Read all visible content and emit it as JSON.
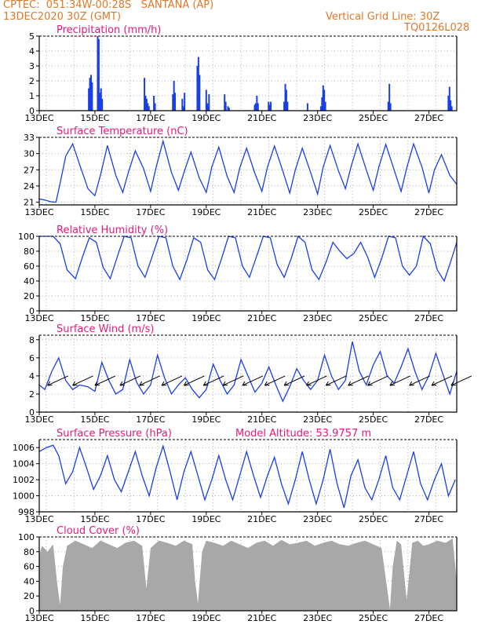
{
  "header": {
    "line1": "CPTEC:  051:34W-00:28S   SANTANA (AP)",
    "line2": "13DEC2020 30Z (GMT)",
    "right1": "Vertical Grid Line: 30Z",
    "right2": "TQ0126L028"
  },
  "colors": {
    "header": "#e07828",
    "title": "#e8197c",
    "line": "#1a3fe6",
    "cloud": "#a8a8a8"
  },
  "chart_data": [
    {
      "type": "bar",
      "title": "Precipitation (mm/h)",
      "ylim": [
        0,
        5
      ],
      "yticks": [
        "0",
        "1",
        "2",
        "3",
        "4",
        "5"
      ],
      "xticks": [
        "13DEC",
        "15DEC",
        "17DEC",
        "19DEC",
        "21DEC",
        "23DEC",
        "25DEC",
        "27DEC"
      ],
      "xlim": [
        0,
        15
      ],
      "x": [
        1.78,
        1.82,
        1.86,
        1.9,
        2.1,
        2.14,
        2.18,
        2.22,
        2.26,
        3.78,
        3.82,
        3.86,
        3.9,
        3.94,
        4.12,
        4.16,
        4.8,
        4.84,
        4.88,
        5.14,
        5.18,
        5.22,
        5.68,
        5.72,
        5.76,
        6.0,
        6.04,
        6.08,
        6.1,
        6.66,
        6.7,
        6.78,
        6.82,
        7.74,
        7.78,
        7.82,
        7.86,
        8.24,
        8.28,
        8.32,
        8.8,
        8.84,
        8.88,
        8.92,
        9.64,
        10.12,
        10.16,
        10.2,
        10.24,
        10.28,
        12.54,
        12.58,
        12.62,
        14.7,
        14.74,
        14.78,
        14.82
      ],
      "values": [
        1.5,
        2.2,
        2.4,
        1.9,
        5.0,
        4.8,
        1.2,
        1.5,
        0.8,
        2.2,
        1.0,
        0.8,
        0.5,
        0.3,
        1.0,
        0.5,
        1.1,
        2.0,
        1.2,
        0.8,
        0.3,
        1.2,
        3.0,
        3.6,
        2.4,
        1.4,
        0.5,
        0.3,
        1.1,
        1.1,
        0.6,
        0.3,
        0.2,
        0.4,
        0.5,
        1.0,
        0.5,
        0.6,
        0.4,
        0.6,
        0.6,
        1.8,
        1.4,
        0.6,
        0.5,
        0.3,
        0.9,
        1.7,
        1.4,
        0.6,
        0.6,
        1.8,
        0.5,
        1.0,
        1.6,
        0.7,
        0.3
      ]
    },
    {
      "type": "line",
      "title": "Surface Temperature (nC)",
      "ylim": [
        20.5,
        33
      ],
      "yticks": [
        "21",
        "24",
        "27",
        "30",
        "33"
      ],
      "xticks": [
        "13DEC",
        "15DEC",
        "17DEC",
        "19DEC",
        "21DEC",
        "23DEC",
        "25DEC",
        "27DEC"
      ],
      "xlim": [
        0,
        15
      ],
      "x": [
        0,
        0.2,
        0.4,
        0.6,
        0.75,
        0.95,
        1.2,
        1.45,
        1.75,
        2.0,
        2.2,
        2.45,
        2.75,
        3.0,
        3.2,
        3.45,
        3.75,
        4.0,
        4.2,
        4.45,
        4.75,
        5.0,
        5.2,
        5.45,
        5.75,
        6.0,
        6.2,
        6.45,
        6.75,
        7.0,
        7.2,
        7.45,
        7.75,
        8.0,
        8.2,
        8.45,
        8.75,
        9.0,
        9.2,
        9.45,
        9.75,
        10.0,
        10.2,
        10.45,
        10.75,
        11.0,
        11.2,
        11.45,
        11.75,
        12.0,
        12.2,
        12.45,
        12.75,
        13.0,
        13.2,
        13.45,
        13.75,
        14.0,
        14.2,
        14.45,
        14.75,
        15.0
      ],
      "values": [
        21.6,
        21.4,
        21.1,
        21.0,
        24.5,
        29.5,
        31.8,
        28.0,
        23.5,
        22.2,
        26.0,
        31.5,
        26.0,
        22.8,
        26.5,
        30.5,
        27.2,
        23.0,
        27.5,
        32.3,
        26.5,
        23.2,
        26.5,
        30.3,
        25.5,
        22.8,
        27.5,
        31.2,
        25.8,
        22.8,
        27.3,
        31.0,
        26.3,
        23.0,
        27.5,
        31.4,
        26.8,
        22.7,
        27.0,
        31.0,
        26.5,
        22.5,
        27.5,
        31.5,
        26.8,
        23.5,
        27.5,
        31.8,
        27.0,
        23.2,
        27.5,
        31.7,
        27.0,
        23.0,
        27.3,
        31.8,
        27.5,
        22.7,
        27.0,
        29.8,
        26.0,
        24.3
      ]
    },
    {
      "type": "line",
      "title": "Relative Humidity (%)",
      "ylim": [
        0,
        100
      ],
      "yticks": [
        "0",
        "20",
        "40",
        "60",
        "80",
        "100"
      ],
      "xticks": [
        "13DEC",
        "15DEC",
        "17DEC",
        "19DEC",
        "21DEC",
        "23DEC",
        "25DEC",
        "27DEC"
      ],
      "xlim": [
        0,
        15
      ],
      "x": [
        0,
        0.3,
        0.5,
        0.75,
        1.0,
        1.3,
        1.55,
        1.8,
        2.05,
        2.3,
        2.55,
        2.8,
        3.05,
        3.3,
        3.55,
        3.8,
        4.05,
        4.3,
        4.55,
        4.8,
        5.05,
        5.3,
        5.55,
        5.8,
        6.05,
        6.3,
        6.55,
        6.8,
        7.05,
        7.3,
        7.55,
        7.8,
        8.05,
        8.3,
        8.55,
        8.8,
        9.05,
        9.3,
        9.55,
        9.8,
        10.05,
        10.3,
        10.55,
        10.8,
        11.05,
        11.3,
        11.55,
        11.8,
        12.05,
        12.3,
        12.55,
        12.8,
        13.05,
        13.3,
        13.55,
        13.8,
        14.05,
        14.3,
        14.55,
        14.8,
        15.0
      ],
      "values": [
        100,
        100,
        100,
        90,
        55,
        43,
        72,
        98,
        92,
        58,
        43,
        72,
        100,
        98,
        60,
        45,
        72,
        100,
        98,
        60,
        42,
        68,
        98,
        92,
        55,
        42,
        70,
        100,
        98,
        60,
        45,
        72,
        100,
        98,
        62,
        45,
        70,
        100,
        92,
        55,
        42,
        65,
        92,
        80,
        70,
        77,
        92,
        72,
        45,
        70,
        100,
        98,
        60,
        48,
        60,
        100,
        90,
        55,
        40,
        68,
        92
      ]
    },
    {
      "type": "line",
      "title": "Surface Wind (m/s)",
      "ylim": [
        0,
        8.5
      ],
      "yticks": [
        "0",
        "2",
        "4",
        "6",
        "8"
      ],
      "xticks": [
        "13DEC",
        "15DEC",
        "17DEC",
        "19DEC",
        "21DEC",
        "23DEC",
        "25DEC",
        "27DEC"
      ],
      "xlim": [
        0,
        15
      ],
      "x": [
        0,
        0.2,
        0.45,
        0.7,
        0.95,
        1.2,
        1.45,
        1.75,
        2.0,
        2.25,
        2.5,
        2.75,
        3.0,
        3.25,
        3.5,
        3.75,
        4.0,
        4.25,
        4.5,
        4.75,
        5.0,
        5.25,
        5.5,
        5.75,
        6.0,
        6.25,
        6.5,
        6.75,
        7.0,
        7.25,
        7.5,
        7.75,
        8.0,
        8.25,
        8.5,
        8.75,
        9.0,
        9.25,
        9.5,
        9.75,
        10.0,
        10.25,
        10.5,
        10.75,
        11.0,
        11.25,
        11.5,
        11.75,
        12.0,
        12.25,
        12.5,
        12.75,
        13.0,
        13.25,
        13.5,
        13.75,
        14.0,
        14.25,
        14.5,
        14.75,
        15.0
      ],
      "values": [
        3.0,
        2.5,
        4.5,
        6.0,
        3.5,
        2.5,
        3.0,
        2.8,
        2.3,
        5.5,
        3.5,
        2.0,
        2.5,
        5.8,
        3.3,
        2.0,
        3.0,
        6.3,
        3.8,
        2.0,
        3.0,
        3.8,
        2.5,
        1.6,
        2.5,
        5.3,
        3.5,
        2.0,
        3.0,
        5.8,
        4.0,
        2.2,
        3.2,
        5.0,
        3.0,
        1.2,
        2.8,
        4.8,
        3.5,
        2.5,
        3.5,
        6.3,
        4.0,
        2.5,
        3.5,
        7.8,
        4.5,
        3.0,
        5.2,
        6.7,
        4.0,
        3.2,
        5.0,
        7.0,
        4.5,
        2.5,
        4.0,
        6.5,
        4.2,
        2.0,
        4.5
      ],
      "arrow_x": [
        0.3,
        1.2,
        2.0,
        2.9,
        3.6,
        4.4,
        5.2,
        5.9,
        6.6,
        7.3,
        8.1,
        8.8,
        9.6,
        10.3,
        11.1,
        11.8,
        12.6,
        13.3,
        14.1,
        14.8
      ]
    },
    {
      "type": "line",
      "title": "Surface Pressure (hPa)",
      "annotation": "Model Altitude: 53.9757 m",
      "ylim": [
        998,
        1007
      ],
      "yticks": [
        "998",
        "1000",
        "1002",
        "1004",
        "1006"
      ],
      "xticks": [
        "13DEC",
        "15DEC",
        "17DEC",
        "19DEC",
        "21DEC",
        "23DEC",
        "25DEC",
        "27DEC"
      ],
      "xlim": [
        0,
        15
      ],
      "x": [
        0,
        0.25,
        0.5,
        0.7,
        0.95,
        1.2,
        1.45,
        1.7,
        1.95,
        2.2,
        2.45,
        2.7,
        2.95,
        3.2,
        3.45,
        3.7,
        3.95,
        4.2,
        4.45,
        4.7,
        4.95,
        5.2,
        5.45,
        5.7,
        5.95,
        6.2,
        6.45,
        6.7,
        6.95,
        7.2,
        7.45,
        7.7,
        7.95,
        8.2,
        8.45,
        8.7,
        8.95,
        9.2,
        9.45,
        9.7,
        9.95,
        10.2,
        10.45,
        10.7,
        10.95,
        11.2,
        11.45,
        11.7,
        11.95,
        12.2,
        12.45,
        12.7,
        12.95,
        13.2,
        13.45,
        13.7,
        13.95,
        14.2,
        14.45,
        14.7,
        14.95
      ],
      "values": [
        1005.5,
        1006.0,
        1006.3,
        1005.0,
        1001.5,
        1003.0,
        1006.0,
        1003.5,
        1000.8,
        1002.5,
        1005.0,
        1002.0,
        1000.5,
        1003.0,
        1005.5,
        1002.5,
        1000.0,
        1003.5,
        1006.2,
        1003.0,
        999.5,
        1003.0,
        1005.5,
        1002.5,
        999.5,
        1002.0,
        1005.0,
        1002.0,
        999.5,
        1002.5,
        1005.5,
        1002.5,
        999.8,
        1002.5,
        1004.8,
        1001.5,
        999.0,
        1002.0,
        1005.5,
        1002.0,
        999.0,
        1002.0,
        1005.8,
        1001.5,
        998.5,
        1002.5,
        1004.5,
        1001.0,
        999.5,
        1002.0,
        1005.0,
        1001.0,
        999.5,
        1002.5,
        1005.5,
        1001.5,
        999.5,
        1002.0,
        1004.0,
        1000.0,
        1002.0
      ]
    },
    {
      "type": "area",
      "title": "Cloud Cover (%)",
      "ylim": [
        0,
        100
      ],
      "yticks": [
        "0",
        "20",
        "40",
        "60",
        "80",
        "100"
      ],
      "xticks": [
        "13DEC",
        "15DEC",
        "17DEC",
        "19DEC",
        "21DEC",
        "23DEC",
        "25DEC",
        "27DEC"
      ],
      "xlim": [
        0,
        15
      ],
      "x": [
        0,
        0.1,
        0.3,
        0.5,
        0.65,
        0.75,
        0.85,
        1.0,
        1.3,
        1.6,
        1.9,
        2.2,
        2.5,
        2.8,
        3.1,
        3.4,
        3.7,
        3.85,
        4.0,
        4.3,
        4.6,
        4.9,
        5.2,
        5.5,
        5.6,
        5.7,
        5.85,
        6.0,
        6.3,
        6.6,
        6.9,
        7.2,
        7.5,
        7.8,
        8.1,
        8.4,
        8.7,
        9.0,
        9.3,
        9.6,
        9.9,
        10.2,
        10.5,
        10.8,
        11.1,
        11.4,
        11.7,
        12.0,
        12.3,
        12.5,
        12.6,
        12.7,
        12.85,
        13.0,
        13.2,
        13.4,
        13.6,
        13.8,
        14.0,
        14.3,
        14.6,
        14.85,
        15.0
      ],
      "values": [
        75,
        88,
        80,
        90,
        35,
        8,
        60,
        88,
        95,
        90,
        85,
        95,
        90,
        85,
        92,
        95,
        88,
        30,
        85,
        95,
        92,
        88,
        95,
        90,
        40,
        10,
        80,
        95,
        92,
        88,
        95,
        90,
        85,
        92,
        95,
        88,
        96,
        90,
        92,
        95,
        88,
        92,
        95,
        90,
        88,
        92,
        95,
        90,
        85,
        30,
        2,
        60,
        95,
        90,
        15,
        92,
        95,
        88,
        90,
        95,
        92,
        98,
        40
      ]
    }
  ]
}
